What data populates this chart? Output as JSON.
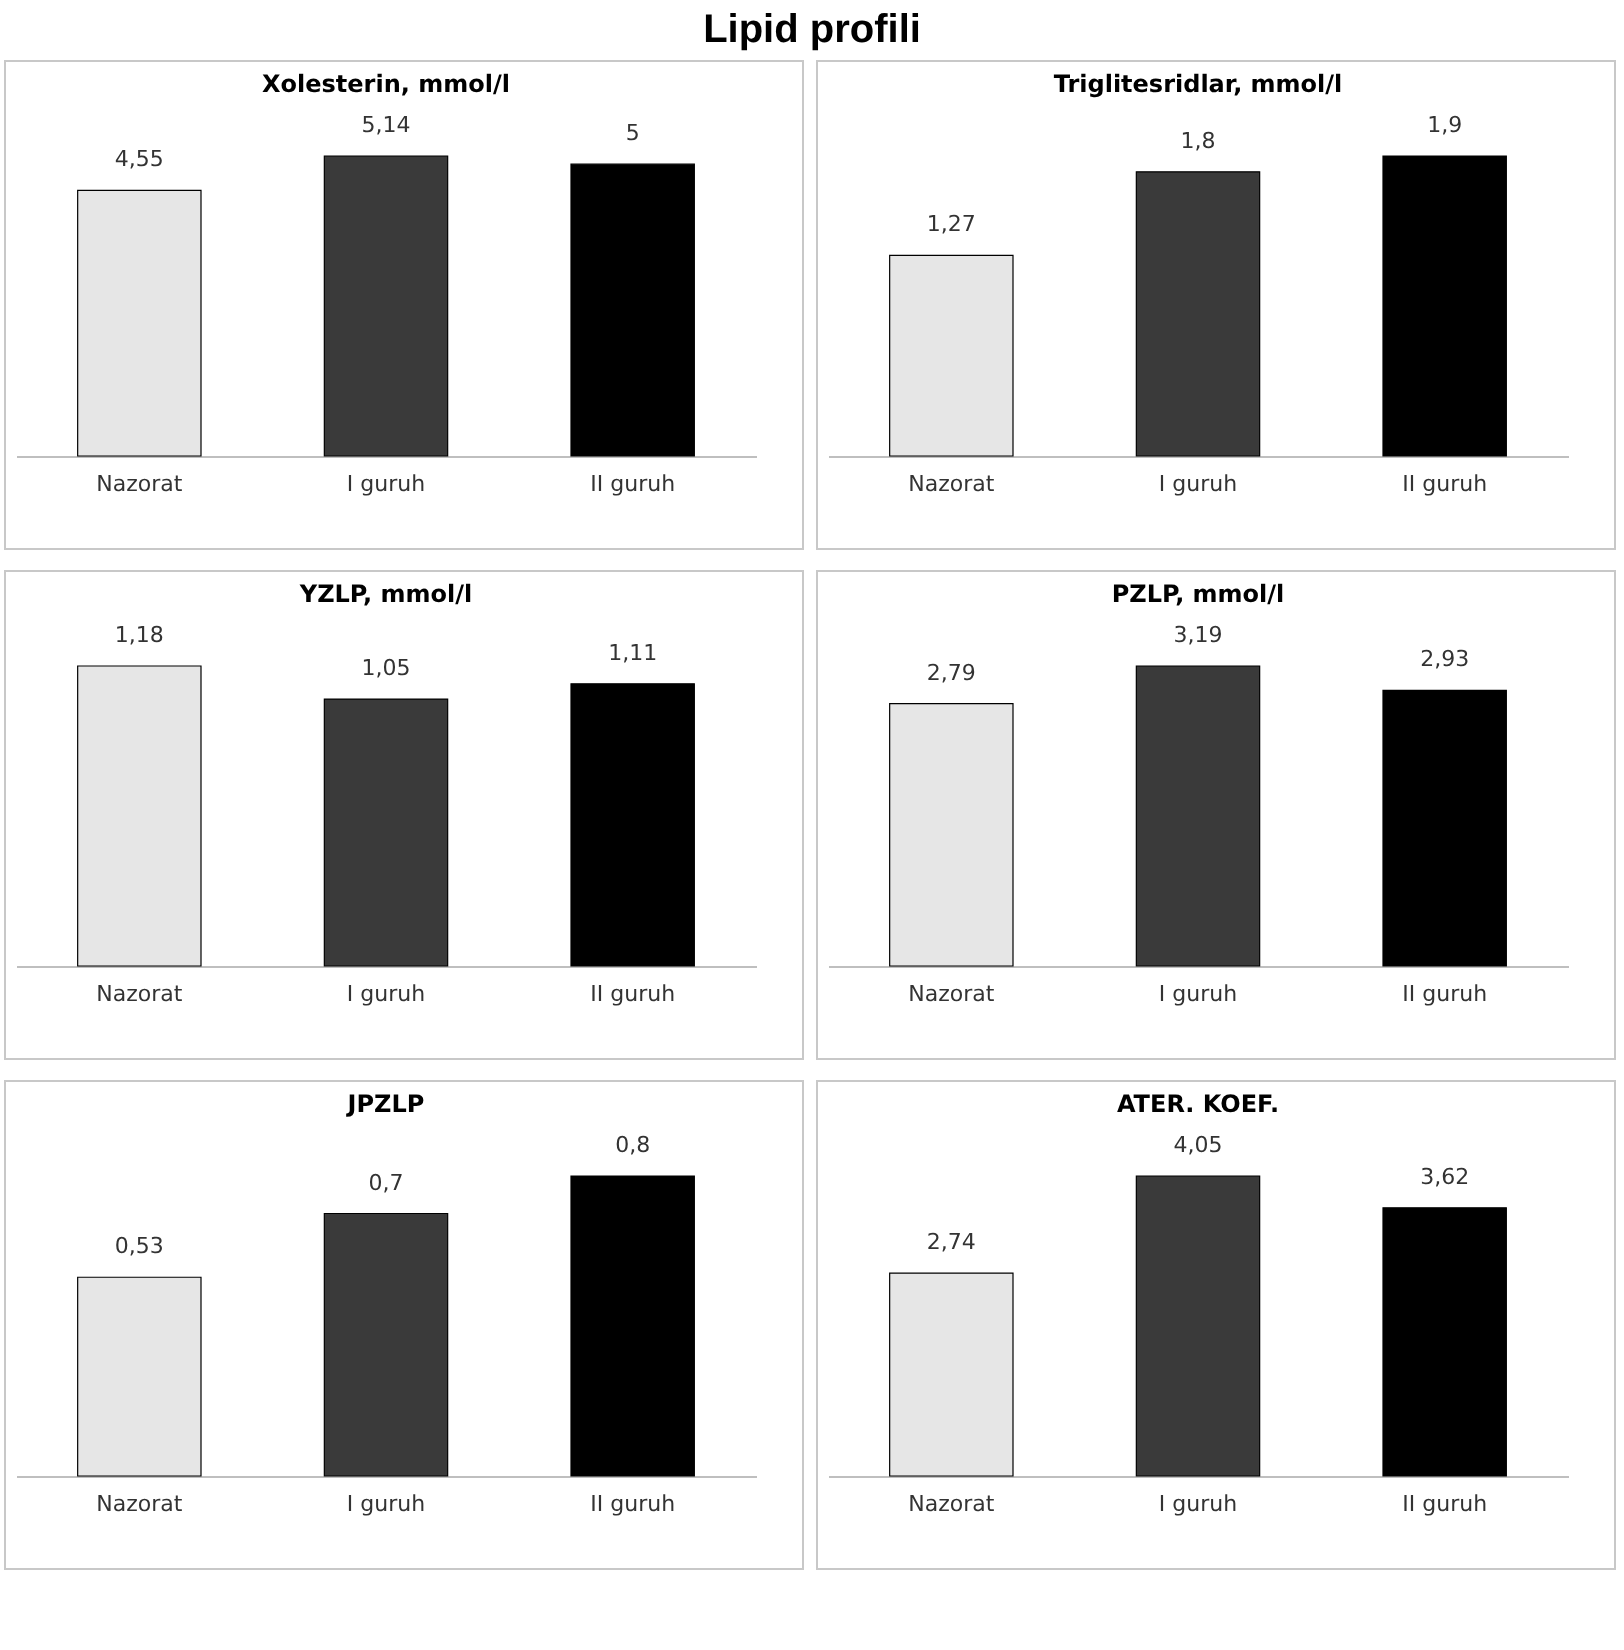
{
  "chart_data": [
    {
      "type": "other",
      "title": "Lipid profili"
    },
    {
      "type": "bar",
      "title": "Xolesterin, mmol/l",
      "categories": [
        "Nazorat",
        "I guruh",
        "II guruh"
      ],
      "values": [
        4.55,
        5.14,
        5
      ],
      "colors": [
        "#e6e6e6",
        "#3a3a3a",
        "#000000"
      ],
      "value_labels": [
        "4,55",
        "5,14",
        "5"
      ]
    },
    {
      "type": "bar",
      "title": "Triglitesridlar, mmol/l",
      "categories": [
        "Nazorat",
        "I guruh",
        "II guruh"
      ],
      "values": [
        1.27,
        1.8,
        1.9
      ],
      "colors": [
        "#e6e6e6",
        "#3a3a3a",
        "#000000"
      ],
      "value_labels": [
        "1,27",
        "1,8",
        "1,9"
      ]
    },
    {
      "type": "bar",
      "title": "YZLP, mmol/l",
      "categories": [
        "Nazorat",
        "I guruh",
        "II guruh"
      ],
      "values": [
        1.18,
        1.05,
        1.11
      ],
      "colors": [
        "#e6e6e6",
        "#3a3a3a",
        "#000000"
      ],
      "value_labels": [
        "1,18",
        "1,05",
        "1,11"
      ]
    },
    {
      "type": "bar",
      "title": "PZLP, mmol/l",
      "categories": [
        "Nazorat",
        "I guruh",
        "II guruh"
      ],
      "values": [
        2.79,
        3.19,
        2.93
      ],
      "colors": [
        "#e6e6e6",
        "#3a3a3a",
        "#000000"
      ],
      "value_labels": [
        "2,79",
        "3,19",
        "2,93"
      ]
    },
    {
      "type": "bar",
      "title": "JPZLP",
      "categories": [
        "Nazorat",
        "I guruh",
        "II guruh"
      ],
      "values": [
        0.53,
        0.7,
        0.8
      ],
      "colors": [
        "#e6e6e6",
        "#3a3a3a",
        "#000000"
      ],
      "value_labels": [
        "0,53",
        "0,7",
        "0,8"
      ]
    },
    {
      "type": "bar",
      "title": "ATER. KOEF.",
      "categories": [
        "Nazorat",
        "I guruh",
        "II guruh"
      ],
      "values": [
        2.74,
        4.05,
        3.62
      ],
      "colors": [
        "#e6e6e6",
        "#3a3a3a",
        "#000000"
      ],
      "value_labels": [
        "2,74",
        "4,05",
        "3,62"
      ]
    }
  ]
}
